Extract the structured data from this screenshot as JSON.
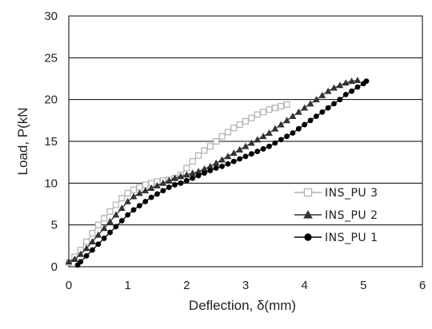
{
  "chart_data": {
    "type": "line",
    "title": "",
    "xlabel": "Deflection, δ(mm)",
    "ylabel": "Load, P(kN",
    "xlim": [
      0,
      6
    ],
    "ylim": [
      0,
      30
    ],
    "xticks": [
      "0",
      "1",
      "2",
      "3",
      "4",
      "5",
      "6"
    ],
    "yticks": [
      "0",
      "5",
      "10",
      "15",
      "20",
      "25",
      "30"
    ],
    "grid": "horizontal",
    "legend_position": "right",
    "series": [
      {
        "name": "INS_PU 3",
        "marker": "square",
        "color": "#b0b0b0",
        "x": [
          0.0,
          0.1,
          0.2,
          0.3,
          0.4,
          0.5,
          0.6,
          0.7,
          0.8,
          0.9,
          1.0,
          1.1,
          1.2,
          1.3,
          1.4,
          1.5,
          1.6,
          1.7,
          1.8,
          1.9,
          2.0,
          2.1,
          2.2,
          2.3,
          2.4,
          2.5,
          2.6,
          2.7,
          2.8,
          2.9,
          3.0,
          3.1,
          3.2,
          3.3,
          3.4,
          3.5,
          3.6,
          3.7
        ],
        "y": [
          0.5,
          1.2,
          2.0,
          3.0,
          4.0,
          5.0,
          5.8,
          6.6,
          7.4,
          8.2,
          8.8,
          9.2,
          9.5,
          9.8,
          10.0,
          10.2,
          10.3,
          10.4,
          10.6,
          11.0,
          11.8,
          12.6,
          13.3,
          13.9,
          14.4,
          15.0,
          15.6,
          16.1,
          16.6,
          17.0,
          17.4,
          17.8,
          18.2,
          18.5,
          18.8,
          19.0,
          19.2,
          19.4
        ]
      },
      {
        "name": "INS_PU 2",
        "marker": "triangle",
        "color": "#333333",
        "x": [
          0.0,
          0.1,
          0.2,
          0.3,
          0.4,
          0.5,
          0.6,
          0.7,
          0.8,
          0.9,
          1.0,
          1.1,
          1.2,
          1.3,
          1.4,
          1.5,
          1.6,
          1.7,
          1.8,
          1.9,
          2.0,
          2.1,
          2.2,
          2.3,
          2.4,
          2.5,
          2.6,
          2.7,
          2.8,
          2.9,
          3.0,
          3.1,
          3.2,
          3.3,
          3.4,
          3.5,
          3.6,
          3.7,
          3.8,
          3.9,
          4.0,
          4.1,
          4.2,
          4.3,
          4.4,
          4.5,
          4.6,
          4.7,
          4.8,
          4.9
        ],
        "y": [
          0.6,
          0.9,
          1.5,
          2.2,
          3.0,
          3.8,
          4.6,
          5.4,
          6.2,
          7.0,
          7.8,
          8.4,
          8.8,
          9.1,
          9.4,
          9.7,
          10.0,
          10.3,
          10.6,
          10.8,
          11.0,
          11.2,
          11.4,
          11.7,
          12.0,
          12.4,
          12.8,
          13.2,
          13.6,
          14.0,
          14.4,
          14.8,
          15.2,
          15.6,
          16.0,
          16.5,
          17.0,
          17.5,
          18.0,
          18.5,
          19.0,
          19.5,
          20.0,
          20.5,
          21.0,
          21.4,
          21.7,
          22.0,
          22.2,
          22.3
        ]
      },
      {
        "name": "INS_PU 1",
        "marker": "circle",
        "color": "#000000",
        "x": [
          0.15,
          0.2,
          0.3,
          0.4,
          0.5,
          0.6,
          0.7,
          0.8,
          0.9,
          1.0,
          1.1,
          1.2,
          1.3,
          1.4,
          1.5,
          1.6,
          1.7,
          1.8,
          1.9,
          2.0,
          2.1,
          2.2,
          2.3,
          2.4,
          2.5,
          2.6,
          2.7,
          2.8,
          2.9,
          3.0,
          3.1,
          3.2,
          3.3,
          3.4,
          3.5,
          3.6,
          3.7,
          3.8,
          3.9,
          4.0,
          4.1,
          4.2,
          4.3,
          4.4,
          4.5,
          4.6,
          4.7,
          4.8,
          4.9,
          5.0,
          5.05
        ],
        "y": [
          0.2,
          0.6,
          1.3,
          2.0,
          2.7,
          3.4,
          4.1,
          4.8,
          5.5,
          6.2,
          6.8,
          7.3,
          7.8,
          8.3,
          8.7,
          9.1,
          9.5,
          9.8,
          10.0,
          10.3,
          10.6,
          10.9,
          11.2,
          11.5,
          11.8,
          12.0,
          12.3,
          12.6,
          12.9,
          13.2,
          13.5,
          13.8,
          14.1,
          14.4,
          14.8,
          15.2,
          15.6,
          16.0,
          16.5,
          17.0,
          17.5,
          18.0,
          18.5,
          19.0,
          19.5,
          20.0,
          20.6,
          21.0,
          21.5,
          21.9,
          22.2
        ]
      }
    ]
  }
}
